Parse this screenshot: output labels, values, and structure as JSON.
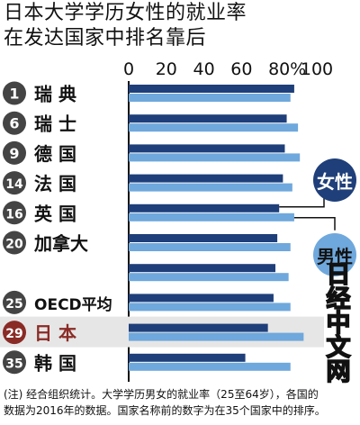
{
  "title_line1": "日本大学学历女性的就业率",
  "title_line2": "在发达国家中排名靠后",
  "footnote_line1": "(注) 经合组织统计。大学学历男女的就业率（25至64岁），各国的",
  "footnote_line2": "数据为2016年的数据。国家名称前的数字为在35个国家中的排序。",
  "watermark_chars": [
    "日",
    "经",
    "中",
    "文",
    "网"
  ],
  "colors": {
    "female": "#1f3f7a",
    "male": "#6fa8dc",
    "rank_badge": "#444444",
    "japan_badge": "#8a2b26",
    "japan_highlight": "#e6e6e6"
  },
  "chart_data": {
    "type": "bar",
    "orientation": "horizontal",
    "x_ticks": [
      "0",
      "20",
      "40",
      "60",
      "80",
      "100"
    ],
    "x_unit": "%",
    "xlim": [
      0,
      100
    ],
    "grid": false,
    "legend_position": "right",
    "rows": [
      {
        "rank": "1",
        "name": "瑞 典",
        "highlight": false
      },
      {
        "rank": "6",
        "name": "瑞 士",
        "highlight": false
      },
      {
        "rank": "9",
        "name": "德 国",
        "highlight": false
      },
      {
        "rank": "14",
        "name": "法 国",
        "highlight": false
      },
      {
        "rank": "16",
        "name": "英 国",
        "highlight": false
      },
      {
        "rank": "20",
        "name": "加拿大",
        "highlight": false
      },
      {
        "rank": "",
        "name": "",
        "highlight": false
      },
      {
        "rank": "25",
        "name": "OECD平均",
        "highlight": false
      },
      {
        "rank": "29",
        "name": "日 本",
        "highlight": true
      },
      {
        "rank": "35",
        "name": "韩 国",
        "highlight": false
      }
    ],
    "series": [
      {
        "name": "女性",
        "values": [
          88,
          84,
          83,
          82,
          80,
          79,
          78,
          77,
          74,
          62
        ]
      },
      {
        "name": "男性",
        "values": [
          86,
          90,
          91,
          87,
          88,
          86,
          85,
          86,
          93,
          86
        ]
      }
    ]
  }
}
